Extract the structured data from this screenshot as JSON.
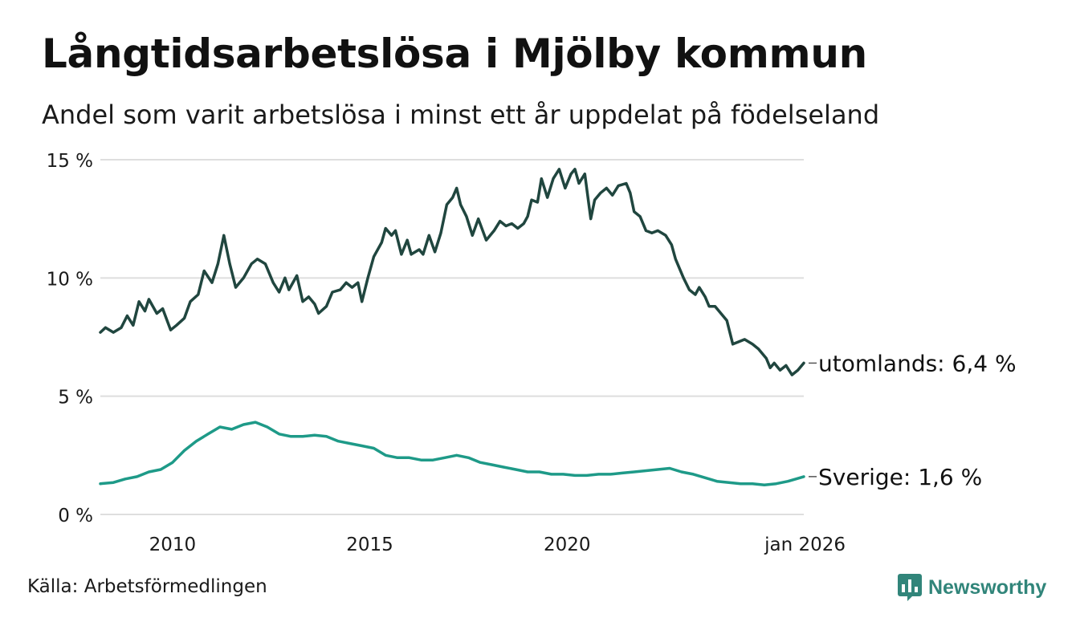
{
  "header": {
    "title": "Långtidsarbetslösa i Mjölby kommun",
    "subtitle": "Andel som varit arbetslösa i minst ett år uppdelat på födelseland"
  },
  "footer": {
    "source": "Källa: Arbetsförmedlingen",
    "brand": "Newsworthy"
  },
  "colors": {
    "utomlands": "#20463f",
    "sverige": "#1e9a88",
    "grid": "#dedede",
    "brand_icon": "#31857a",
    "brand_text": "#31857a"
  },
  "chart_data": {
    "type": "line",
    "title": "Långtidsarbetslösa i Mjölby kommun",
    "subtitle": "Andel som varit arbetslösa i minst ett år uppdelat på födelseland",
    "xlabel": "",
    "ylabel": "",
    "x_range": [
      2008.17,
      2026.0
    ],
    "ylim": [
      0,
      15
    ],
    "yticks": [
      0,
      5,
      10,
      15
    ],
    "ytick_labels": [
      "0 %",
      "5 %",
      "10 %",
      "15 %"
    ],
    "xticks": [
      2010,
      2015,
      2020,
      2026
    ],
    "xtick_labels": [
      "2010",
      "2015",
      "2020",
      "jan 2026"
    ],
    "grid": true,
    "legend": "end-of-line labels",
    "series": [
      {
        "name": "utomlands",
        "end_label": "utomlands: 6,4 %",
        "points": [
          [
            2008.17,
            7.7
          ],
          [
            2008.3,
            7.9
          ],
          [
            2008.5,
            7.7
          ],
          [
            2008.7,
            7.9
          ],
          [
            2008.85,
            8.4
          ],
          [
            2009.0,
            8.0
          ],
          [
            2009.15,
            9.0
          ],
          [
            2009.3,
            8.6
          ],
          [
            2009.4,
            9.1
          ],
          [
            2009.6,
            8.5
          ],
          [
            2009.75,
            8.7
          ],
          [
            2009.95,
            7.8
          ],
          [
            2010.1,
            8.0
          ],
          [
            2010.3,
            8.3
          ],
          [
            2010.45,
            9.0
          ],
          [
            2010.65,
            9.3
          ],
          [
            2010.8,
            10.3
          ],
          [
            2011.0,
            9.8
          ],
          [
            2011.15,
            10.6
          ],
          [
            2011.3,
            11.8
          ],
          [
            2011.45,
            10.6
          ],
          [
            2011.6,
            9.6
          ],
          [
            2011.8,
            10.0
          ],
          [
            2012.0,
            10.6
          ],
          [
            2012.15,
            10.8
          ],
          [
            2012.35,
            10.6
          ],
          [
            2012.55,
            9.8
          ],
          [
            2012.7,
            9.4
          ],
          [
            2012.85,
            10.0
          ],
          [
            2012.95,
            9.5
          ],
          [
            2013.15,
            10.1
          ],
          [
            2013.3,
            9.0
          ],
          [
            2013.45,
            9.2
          ],
          [
            2013.6,
            8.9
          ],
          [
            2013.7,
            8.5
          ],
          [
            2013.9,
            8.8
          ],
          [
            2014.05,
            9.4
          ],
          [
            2014.25,
            9.5
          ],
          [
            2014.4,
            9.8
          ],
          [
            2014.55,
            9.6
          ],
          [
            2014.7,
            9.8
          ],
          [
            2014.8,
            9.0
          ],
          [
            2014.95,
            10.0
          ],
          [
            2015.1,
            10.9
          ],
          [
            2015.3,
            11.5
          ],
          [
            2015.4,
            12.1
          ],
          [
            2015.55,
            11.8
          ],
          [
            2015.65,
            12.0
          ],
          [
            2015.8,
            11.0
          ],
          [
            2015.95,
            11.6
          ],
          [
            2016.05,
            11.0
          ],
          [
            2016.25,
            11.2
          ],
          [
            2016.35,
            11.0
          ],
          [
            2016.5,
            11.8
          ],
          [
            2016.65,
            11.1
          ],
          [
            2016.8,
            11.9
          ],
          [
            2016.95,
            13.1
          ],
          [
            2017.1,
            13.4
          ],
          [
            2017.2,
            13.8
          ],
          [
            2017.3,
            13.1
          ],
          [
            2017.45,
            12.6
          ],
          [
            2017.6,
            11.8
          ],
          [
            2017.75,
            12.5
          ],
          [
            2017.95,
            11.6
          ],
          [
            2018.15,
            12.0
          ],
          [
            2018.3,
            12.4
          ],
          [
            2018.45,
            12.2
          ],
          [
            2018.6,
            12.3
          ],
          [
            2018.75,
            12.1
          ],
          [
            2018.9,
            12.3
          ],
          [
            2019.0,
            12.6
          ],
          [
            2019.1,
            13.3
          ],
          [
            2019.25,
            13.2
          ],
          [
            2019.35,
            14.2
          ],
          [
            2019.5,
            13.4
          ],
          [
            2019.65,
            14.2
          ],
          [
            2019.8,
            14.6
          ],
          [
            2019.95,
            13.8
          ],
          [
            2020.1,
            14.4
          ],
          [
            2020.2,
            14.6
          ],
          [
            2020.3,
            14.0
          ],
          [
            2020.45,
            14.4
          ],
          [
            2020.6,
            12.5
          ],
          [
            2020.7,
            13.3
          ],
          [
            2020.85,
            13.6
          ],
          [
            2021.0,
            13.8
          ],
          [
            2021.15,
            13.5
          ],
          [
            2021.3,
            13.9
          ],
          [
            2021.5,
            14.0
          ],
          [
            2021.6,
            13.6
          ],
          [
            2021.7,
            12.8
          ],
          [
            2021.85,
            12.6
          ],
          [
            2022.0,
            12.0
          ],
          [
            2022.15,
            11.9
          ],
          [
            2022.3,
            12.0
          ],
          [
            2022.5,
            11.8
          ],
          [
            2022.65,
            11.4
          ],
          [
            2022.75,
            10.8
          ],
          [
            2022.95,
            10.0
          ],
          [
            2023.1,
            9.5
          ],
          [
            2023.25,
            9.3
          ],
          [
            2023.35,
            9.6
          ],
          [
            2023.5,
            9.2
          ],
          [
            2023.6,
            8.8
          ],
          [
            2023.75,
            8.8
          ],
          [
            2023.9,
            8.5
          ],
          [
            2024.05,
            8.2
          ],
          [
            2024.2,
            7.2
          ],
          [
            2024.35,
            7.3
          ],
          [
            2024.5,
            7.4
          ],
          [
            2024.7,
            7.2
          ],
          [
            2024.85,
            7.0
          ],
          [
            2025.05,
            6.6
          ],
          [
            2025.15,
            6.2
          ],
          [
            2025.25,
            6.4
          ],
          [
            2025.4,
            6.1
          ],
          [
            2025.55,
            6.3
          ],
          [
            2025.7,
            5.9
          ],
          [
            2025.85,
            6.1
          ],
          [
            2026.0,
            6.4
          ]
        ]
      },
      {
        "name": "Sverige",
        "end_label": "Sverige: 1,6 %",
        "points": [
          [
            2008.17,
            1.3
          ],
          [
            2008.5,
            1.35
          ],
          [
            2008.8,
            1.5
          ],
          [
            2009.1,
            1.6
          ],
          [
            2009.4,
            1.8
          ],
          [
            2009.7,
            1.9
          ],
          [
            2010.0,
            2.2
          ],
          [
            2010.3,
            2.7
          ],
          [
            2010.6,
            3.1
          ],
          [
            2010.9,
            3.4
          ],
          [
            2011.2,
            3.7
          ],
          [
            2011.5,
            3.6
          ],
          [
            2011.8,
            3.8
          ],
          [
            2012.1,
            3.9
          ],
          [
            2012.4,
            3.7
          ],
          [
            2012.7,
            3.4
          ],
          [
            2013.0,
            3.3
          ],
          [
            2013.3,
            3.3
          ],
          [
            2013.6,
            3.35
          ],
          [
            2013.9,
            3.3
          ],
          [
            2014.2,
            3.1
          ],
          [
            2014.5,
            3.0
          ],
          [
            2014.8,
            2.9
          ],
          [
            2015.1,
            2.8
          ],
          [
            2015.4,
            2.5
          ],
          [
            2015.7,
            2.4
          ],
          [
            2016.0,
            2.4
          ],
          [
            2016.3,
            2.3
          ],
          [
            2016.6,
            2.3
          ],
          [
            2016.9,
            2.4
          ],
          [
            2017.2,
            2.5
          ],
          [
            2017.5,
            2.4
          ],
          [
            2017.8,
            2.2
          ],
          [
            2018.1,
            2.1
          ],
          [
            2018.4,
            2.0
          ],
          [
            2018.7,
            1.9
          ],
          [
            2019.0,
            1.8
          ],
          [
            2019.3,
            1.8
          ],
          [
            2019.6,
            1.7
          ],
          [
            2019.9,
            1.7
          ],
          [
            2020.2,
            1.65
          ],
          [
            2020.5,
            1.65
          ],
          [
            2020.8,
            1.7
          ],
          [
            2021.1,
            1.7
          ],
          [
            2021.4,
            1.75
          ],
          [
            2021.7,
            1.8
          ],
          [
            2022.0,
            1.85
          ],
          [
            2022.3,
            1.9
          ],
          [
            2022.6,
            1.95
          ],
          [
            2022.9,
            1.8
          ],
          [
            2023.2,
            1.7
          ],
          [
            2023.5,
            1.55
          ],
          [
            2023.8,
            1.4
          ],
          [
            2024.1,
            1.35
          ],
          [
            2024.4,
            1.3
          ],
          [
            2024.7,
            1.3
          ],
          [
            2025.0,
            1.25
          ],
          [
            2025.3,
            1.3
          ],
          [
            2025.6,
            1.4
          ],
          [
            2025.8,
            1.5
          ],
          [
            2026.0,
            1.6
          ]
        ]
      }
    ]
  }
}
